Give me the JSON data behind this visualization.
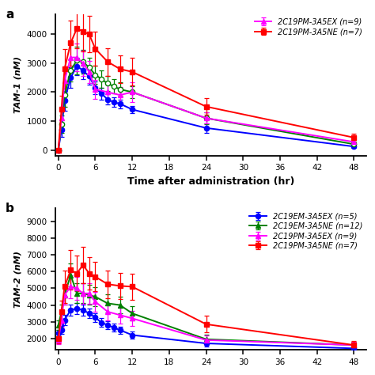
{
  "panel_a": {
    "label": "a",
    "ylabel": "TAM-1 (nM)",
    "xlabel": "Time after administration (hr)",
    "yticks": [
      0,
      1000,
      2000,
      3000,
      4000
    ],
    "ylim": [
      -200,
      4700
    ],
    "xticks": [
      0,
      6,
      12,
      18,
      24,
      30,
      36,
      42,
      48
    ],
    "xlim": [
      -0.5,
      50
    ],
    "series": [
      {
        "label": "2C19EM-3A5EX (n=5)",
        "color": "#0000FF",
        "marker": "o",
        "markerfacecolor": "#0000FF",
        "x": [
          0,
          0.5,
          1,
          2,
          3,
          4,
          5,
          6,
          7,
          8,
          9,
          10,
          12,
          24,
          48
        ],
        "y": [
          0,
          700,
          1700,
          2500,
          2900,
          2750,
          2550,
          2150,
          1950,
          1750,
          1650,
          1600,
          1400,
          760,
          120
        ],
        "yerr": [
          0,
          250,
          350,
          350,
          300,
          300,
          280,
          220,
          200,
          170,
          160,
          150,
          130,
          170,
          60
        ]
      },
      {
        "label": "2C19EM-3A5NE (n=12)",
        "color": "#008000",
        "marker": "o",
        "markerfacecolor": "white",
        "x": [
          0,
          0.5,
          1,
          2,
          3,
          4,
          5,
          6,
          7,
          8,
          9,
          10,
          12,
          24,
          48
        ],
        "y": [
          0,
          900,
          1900,
          2750,
          3100,
          3050,
          2850,
          2600,
          2450,
          2300,
          2200,
          2100,
          2000,
          1100,
          200
        ],
        "yerr": [
          0,
          300,
          400,
          380,
          480,
          400,
          350,
          310,
          290,
          260,
          240,
          230,
          210,
          210,
          90
        ]
      },
      {
        "label": "2C19PM-3A5EX (n=9)",
        "color": "#FF00FF",
        "marker": "^",
        "markerfacecolor": "#FF00FF",
        "x": [
          0,
          0.5,
          1,
          2,
          3,
          4,
          5,
          6,
          8,
          10,
          12,
          24,
          48
        ],
        "y": [
          0,
          1100,
          2400,
          3200,
          3200,
          3000,
          2700,
          2100,
          2000,
          1900,
          2000,
          1100,
          280
        ],
        "yerr": [
          0,
          380,
          480,
          480,
          480,
          430,
          380,
          330,
          290,
          290,
          330,
          190,
          90
        ]
      },
      {
        "label": "2C19PM-3A5NE (n=7)",
        "color": "#FF0000",
        "marker": "s",
        "markerfacecolor": "#FF0000",
        "x": [
          0,
          0.5,
          1,
          2,
          3,
          4,
          5,
          6,
          8,
          10,
          12,
          24,
          48
        ],
        "y": [
          0,
          1400,
          2800,
          3700,
          4200,
          4100,
          4000,
          3500,
          3050,
          2800,
          2700,
          1500,
          430
        ],
        "yerr": [
          0,
          480,
          680,
          780,
          680,
          680,
          630,
          580,
          480,
          480,
          480,
          290,
          140
        ]
      }
    ],
    "legend_show": [
      "2C19PM-3A5EX (n=9)",
      "2C19PM-3A5NE (n=7)"
    ]
  },
  "panel_b": {
    "label": "b",
    "ylabel": "TAM-2 (nM)",
    "xlabel": "",
    "yticks": [
      2000,
      3000,
      4000,
      5000,
      6000,
      7000,
      8000,
      9000
    ],
    "ylim": [
      1300,
      9800
    ],
    "xticks": [
      0,
      6,
      12,
      18,
      24,
      30,
      36,
      42,
      48
    ],
    "xlim": [
      -0.5,
      50
    ],
    "series": [
      {
        "label": "2C19EM-3A5EX (n=5)",
        "color": "#0000FF",
        "marker": "o",
        "markerfacecolor": "#0000FF",
        "x": [
          0,
          0.5,
          1,
          2,
          3,
          4,
          5,
          6,
          7,
          8,
          9,
          10,
          12,
          24,
          48
        ],
        "y": [
          2300,
          2500,
          3100,
          3700,
          3800,
          3700,
          3500,
          3250,
          2950,
          2800,
          2650,
          2500,
          2200,
          1700,
          1400
        ],
        "yerr": [
          200,
          240,
          290,
          340,
          340,
          340,
          290,
          270,
          250,
          240,
          220,
          210,
          190,
          190,
          140
        ]
      },
      {
        "label": "2C19EM-3A5NE (n=12)",
        "color": "#008000",
        "marker": "^",
        "markerfacecolor": "#008000",
        "x": [
          0,
          0.5,
          1,
          2,
          3,
          4,
          5,
          6,
          8,
          10,
          12,
          24,
          48
        ],
        "y": [
          2800,
          3600,
          4600,
          5800,
          4700,
          4700,
          4600,
          4500,
          4100,
          4000,
          3500,
          1950,
          1600
        ],
        "yerr": [
          290,
          440,
          590,
          680,
          590,
          590,
          590,
          590,
          540,
          490,
          440,
          290,
          190
        ]
      },
      {
        "label": "2C19PM-3A5EX (n=9)",
        "color": "#FF00FF",
        "marker": "^",
        "markerfacecolor": "#FF00FF",
        "x": [
          0,
          0.5,
          1,
          2,
          3,
          4,
          5,
          6,
          8,
          10,
          12,
          24,
          48
        ],
        "y": [
          1900,
          3100,
          4600,
          5100,
          5000,
          4700,
          4700,
          4200,
          3600,
          3400,
          3200,
          1900,
          1600
        ],
        "yerr": [
          240,
          390,
          590,
          680,
          680,
          630,
          630,
          580,
          530,
          490,
          440,
          290,
          190
        ]
      },
      {
        "label": "2C19PM-3A5NE (n=7)",
        "color": "#FF0000",
        "marker": "s",
        "markerfacecolor": "#FF0000",
        "x": [
          0,
          0.5,
          1,
          2,
          3,
          4,
          5,
          6,
          8,
          10,
          12,
          24,
          48
        ],
        "y": [
          2000,
          3600,
          5100,
          6100,
          5900,
          6400,
          5900,
          5700,
          5250,
          5150,
          5100,
          2850,
          1600
        ],
        "yerr": [
          290,
          680,
          980,
          1180,
          1080,
          1080,
          980,
          880,
          830,
          780,
          780,
          490,
          240
        ]
      }
    ],
    "legend_show": [
      "2C19EM-3A5EX (n=5)",
      "2C19EM-3A5NE (n=12)",
      "2C19PM-3A5EX (n=9)",
      "2C19PM-3A5NE (n=7)"
    ]
  }
}
